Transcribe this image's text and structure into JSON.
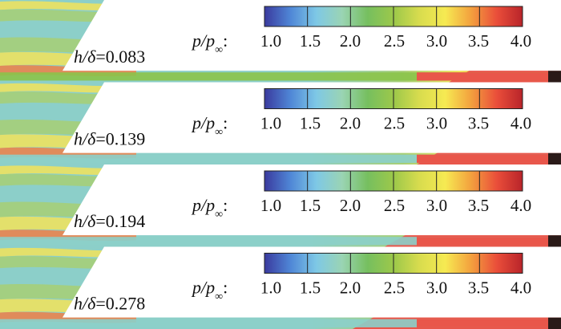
{
  "figure": {
    "description_type": "pressure-contour-panels",
    "background": "#ffffff",
    "end_mark_color": "#2a1a18"
  },
  "chart_data": {
    "type": "heatmap",
    "quantity_label_parts": [
      "p/p",
      "∞",
      ":"
    ],
    "colorbar": {
      "min": 1.0,
      "max": 4.0,
      "tick_values": [
        1.0,
        1.5,
        2.0,
        2.5,
        3.0,
        3.5,
        4.0
      ],
      "tick_labels": [
        "1.0",
        "1.5",
        "2.0",
        "2.5",
        "3.0",
        "3.5",
        "4.0"
      ],
      "colors": [
        "#3a3a9e",
        "#4f86d6",
        "#7ec8e6",
        "#9ad4b4",
        "#76bf5f",
        "#9cc84a",
        "#d8dc4e",
        "#f6ea52",
        "#f3a13e",
        "#ea4e3a",
        "#b8242a"
      ]
    },
    "panels": [
      {
        "label_var": "h/δ",
        "label_value": "=0.083",
        "h_over_delta": 0.083
      },
      {
        "label_var": "h/δ",
        "label_value": "=0.139",
        "h_over_delta": 0.139
      },
      {
        "label_var": "h/δ",
        "label_value": "=0.194",
        "h_over_delta": 0.194
      },
      {
        "label_var": "h/δ",
        "label_value": "=0.278",
        "h_over_delta": 0.278
      }
    ]
  }
}
